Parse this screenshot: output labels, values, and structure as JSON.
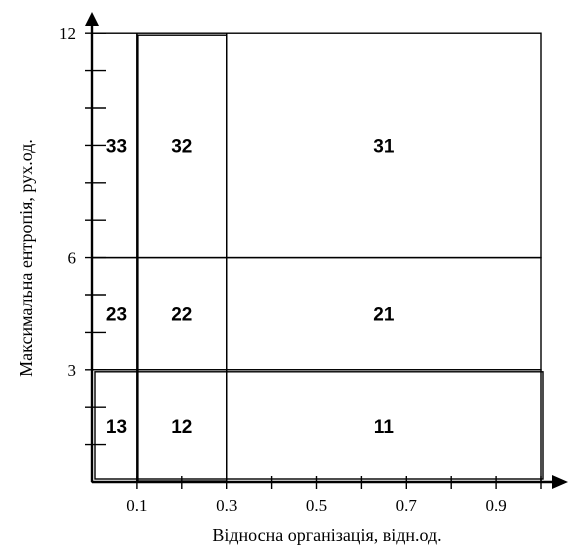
{
  "chart_data": {
    "type": "diagram",
    "xlabel": "Відносна організація, відн.од.",
    "ylabel": "Максимальна ентропія, рух.од.",
    "xlim": [
      0,
      1.05
    ],
    "ylim": [
      0,
      12.4
    ],
    "x_tick_labels": [
      {
        "value": 0.1,
        "label": "0.1"
      },
      {
        "value": 0.3,
        "label": "0.3"
      },
      {
        "value": 0.5,
        "label": "0.5"
      },
      {
        "value": 0.7,
        "label": "0.7"
      },
      {
        "value": 0.9,
        "label": "0.9"
      }
    ],
    "x_minor_ticks": [
      0.2,
      0.4,
      0.6,
      0.8,
      1.0
    ],
    "y_tick_labels": [
      {
        "value": 3,
        "label": "3"
      },
      {
        "value": 6,
        "label": "6"
      },
      {
        "value": 12,
        "label": "12"
      }
    ],
    "y_minor_ticks": [
      1,
      2,
      4,
      5,
      7,
      8,
      9,
      10,
      11
    ],
    "regions": [
      {
        "id": "33",
        "x": [
          0,
          0.1
        ],
        "y": [
          6,
          12
        ]
      },
      {
        "id": "32",
        "x": [
          0.1,
          0.3
        ],
        "y": [
          6,
          12
        ]
      },
      {
        "id": "31",
        "x": [
          0.3,
          1.0
        ],
        "y": [
          6,
          12
        ]
      },
      {
        "id": "23",
        "x": [
          0,
          0.1
        ],
        "y": [
          3,
          6
        ]
      },
      {
        "id": "22",
        "x": [
          0.1,
          0.3
        ],
        "y": [
          3,
          6
        ]
      },
      {
        "id": "21",
        "x": [
          0.3,
          1.0
        ],
        "y": [
          3,
          6
        ]
      },
      {
        "id": "13",
        "x": [
          0,
          0.1
        ],
        "y": [
          0,
          3
        ]
      },
      {
        "id": "12",
        "x": [
          0.1,
          0.3
        ],
        "y": [
          0,
          3
        ]
      },
      {
        "id": "11",
        "x": [
          0.3,
          1.0
        ],
        "y": [
          0,
          3
        ]
      }
    ]
  }
}
